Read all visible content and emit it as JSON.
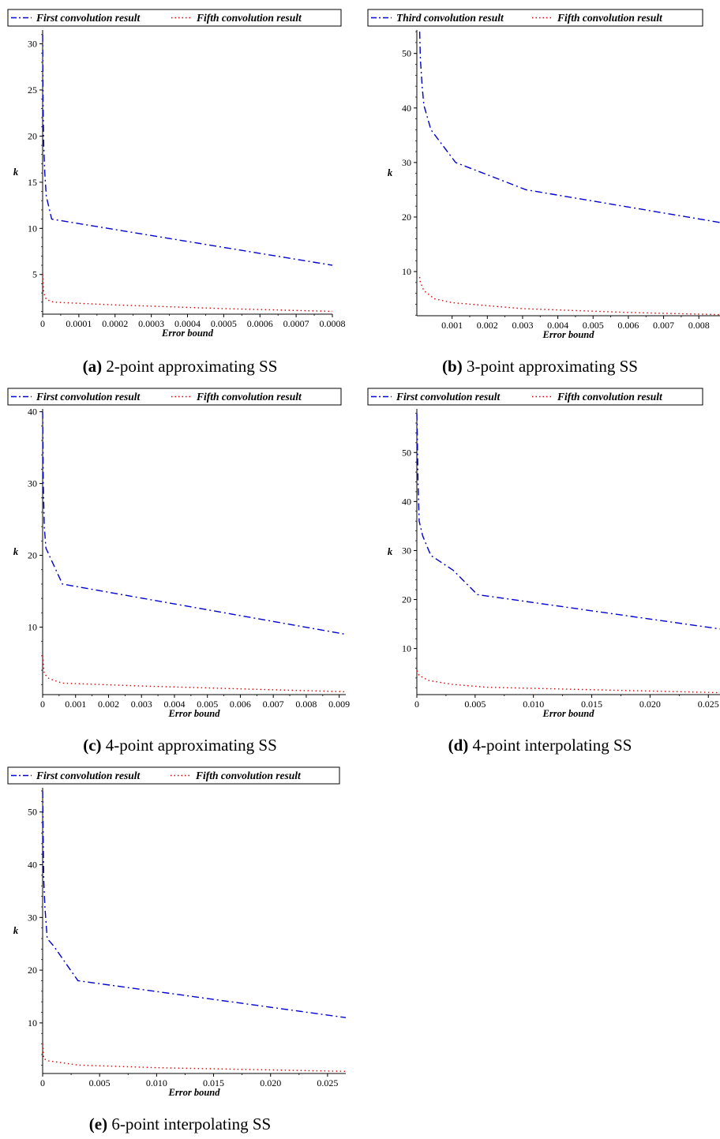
{
  "colors": {
    "series1": "#0000cc",
    "series2": "#dd0000"
  },
  "chart_data": [
    {
      "id": "a",
      "type": "line",
      "caption_letter": "(a)",
      "caption_text": " 2-point approximating SS",
      "xlabel": "Error bound",
      "ylabel": "k",
      "xlim": [
        0,
        0.0008
      ],
      "ylim": [
        0.7,
        31.5
      ],
      "xticks": [
        0,
        0.0001,
        0.0002,
        0.0003,
        0.0004,
        0.0005,
        0.0006,
        0.0007,
        0.0008
      ],
      "xtick_labels": [
        "0",
        "0.0001",
        "0.0002",
        "0.0003",
        "0.0004",
        "0.0005",
        "0.0006",
        "0.0007",
        "0.0008"
      ],
      "yticks": [
        5,
        10,
        15,
        20,
        25,
        30
      ],
      "ytick_labels": [
        "5",
        "10",
        "15",
        "20",
        "25",
        "30"
      ],
      "series": [
        {
          "name": "First convolution result",
          "style": "dashdot",
          "x": [
            0,
            1e-06,
            3e-06,
            6e-06,
            1e-05,
            2.5e-05,
            0.0008
          ],
          "y": [
            31,
            24,
            19,
            16,
            13.5,
            11,
            6
          ]
        },
        {
          "name": "Fifth convolution result",
          "style": "dotted",
          "x": [
            0,
            3e-06,
            1e-05,
            3e-05,
            0.0002,
            0.0005,
            0.0008
          ],
          "y": [
            5,
            3,
            2.3,
            2,
            1.7,
            1.3,
            1
          ]
        }
      ]
    },
    {
      "id": "b",
      "type": "line",
      "caption_letter": "(b)",
      "caption_text": " 3-point approximating SS",
      "xlabel": "Error bound",
      "ylabel": "k",
      "xlim": [
        0,
        0.0086
      ],
      "ylim": [
        1.9,
        54.3
      ],
      "xticks": [
        0.001,
        0.002,
        0.003,
        0.004,
        0.005,
        0.006,
        0.007,
        0.008
      ],
      "xtick_labels": [
        "0.001",
        "0.002",
        "0.003",
        "0.004",
        "0.005",
        "0.006",
        "0.007",
        "0.008"
      ],
      "yticks": [
        10,
        20,
        30,
        40,
        50
      ],
      "ytick_labels": [
        "10",
        "20",
        "30",
        "40",
        "50"
      ],
      "series": [
        {
          "name": "Third convolution result",
          "style": "dashdot",
          "x": [
            8e-05,
            0.0001,
            0.00015,
            0.0002,
            0.0004,
            0.0011,
            0.0031,
            0.0086
          ],
          "y": [
            54,
            49,
            44,
            40.5,
            36,
            30,
            25,
            19
          ]
        },
        {
          "name": "Fifth convolution result",
          "style": "dotted",
          "x": [
            8e-05,
            0.0001,
            0.0002,
            0.0005,
            0.001,
            0.003,
            0.006,
            0.0086
          ],
          "y": [
            9,
            8,
            6.5,
            5,
            4.3,
            3.2,
            2.5,
            2.1
          ]
        }
      ]
    },
    {
      "id": "c",
      "type": "line",
      "caption_letter": "(c)",
      "caption_text": " 4-point approximating SS",
      "xlabel": "Error bound",
      "ylabel": "k",
      "xlim": [
        0,
        0.0092
      ],
      "ylim": [
        0.6,
        40.4
      ],
      "xticks": [
        0,
        0.001,
        0.002,
        0.003,
        0.004,
        0.005,
        0.006,
        0.007,
        0.008,
        0.009
      ],
      "xtick_labels": [
        "0",
        "0.001",
        "0.002",
        "0.003",
        "0.004",
        "0.005",
        "0.006",
        "0.007",
        "0.008",
        "0.009"
      ],
      "yticks": [
        10,
        20,
        30,
        40
      ],
      "ytick_labels": [
        "10",
        "20",
        "30",
        "40"
      ],
      "series": [
        {
          "name": "First convolution result",
          "style": "dashdot",
          "x": [
            0,
            2e-05,
            5e-05,
            0.0001,
            0.0002,
            0.0006,
            0.0092
          ],
          "y": [
            40,
            30,
            24,
            21,
            20,
            16,
            9
          ]
        },
        {
          "name": "Fifth convolution result",
          "style": "dotted",
          "x": [
            0,
            5e-05,
            0.0002,
            0.0006,
            0.003,
            0.006,
            0.0092
          ],
          "y": [
            6,
            3.5,
            2.8,
            2.2,
            1.8,
            1.4,
            1
          ]
        }
      ]
    },
    {
      "id": "d",
      "type": "line",
      "caption_letter": "(d)",
      "caption_text": " 4-point interpolating SS",
      "xlabel": "Error bound",
      "ylabel": "k",
      "xlim": [
        0,
        0.026
      ],
      "ylim": [
        0.6,
        58.9
      ],
      "xticks": [
        0,
        0.005,
        0.01,
        0.015,
        0.02,
        0.025
      ],
      "xtick_labels": [
        "0",
        "0.005",
        "0.010",
        "0.015",
        "0.020",
        "0.025"
      ],
      "yticks": [
        10,
        20,
        30,
        40,
        50
      ],
      "ytick_labels": [
        "10",
        "20",
        "30",
        "40",
        "50"
      ],
      "series": [
        {
          "name": "First convolution result",
          "style": "dashdot",
          "x": [
            0,
            5e-05,
            0.0001,
            0.0002,
            0.0005,
            0.0012,
            0.0031,
            0.0052,
            0.026
          ],
          "y": [
            58,
            52,
            44,
            36,
            33,
            29,
            26,
            21,
            14
          ]
        },
        {
          "name": "Fifth convolution result",
          "style": "dotted",
          "x": [
            0,
            0.0002,
            0.001,
            0.003,
            0.006,
            0.015,
            0.026
          ],
          "y": [
            5.5,
            4.5,
            3.5,
            2.7,
            2.1,
            1.6,
            1
          ]
        }
      ]
    },
    {
      "id": "e",
      "type": "line",
      "caption_letter": "(e)",
      "caption_text": " 6-point interpolating SS",
      "xlabel": "Error bound",
      "ylabel": "k",
      "xlim": [
        0,
        0.0266
      ],
      "ylim": [
        0.4,
        54.6
      ],
      "xticks": [
        0,
        0.005,
        0.01,
        0.015,
        0.02,
        0.025
      ],
      "xtick_labels": [
        "0",
        "0.005",
        "0.010",
        "0.015",
        "0.020",
        "0.025"
      ],
      "yticks": [
        10,
        20,
        30,
        40,
        50
      ],
      "ytick_labels": [
        "10",
        "20",
        "30",
        "40",
        "50"
      ],
      "series": [
        {
          "name": "First convolution result",
          "style": "dashdot",
          "x": [
            0,
            5e-05,
            0.0001,
            0.0002,
            0.0004,
            0.001,
            0.0031,
            0.0266
          ],
          "y": [
            54,
            45,
            37,
            32,
            26,
            24.5,
            18,
            11
          ]
        },
        {
          "name": "Fifth convolution result",
          "style": "dotted",
          "x": [
            0,
            0.0001,
            0.0005,
            0.0031,
            0.01,
            0.0266
          ],
          "y": [
            6,
            3.2,
            2.8,
            2,
            1.5,
            0.8
          ]
        }
      ]
    }
  ]
}
